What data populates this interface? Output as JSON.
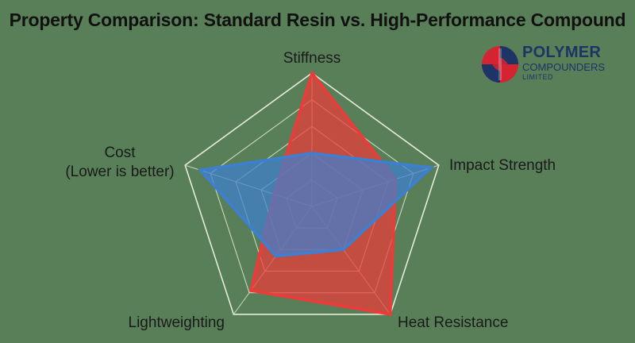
{
  "title": "Property Comparison: Standard Resin vs. High-Performance Compound",
  "logo": {
    "name": "POLYMER",
    "line2": "COMPOUNDERS",
    "line3": "LIMITED"
  },
  "chart_data": {
    "type": "radar",
    "axes": [
      {
        "label": "Stiffness",
        "lines": [
          "Stiffness"
        ]
      },
      {
        "label": "Impact Strength",
        "lines": [
          "Impact Strength"
        ]
      },
      {
        "label": "Heat Resistance",
        "lines": [
          "Heat Resistance"
        ]
      },
      {
        "label": "Lightweighting",
        "lines": [
          "Lightweighting"
        ]
      },
      {
        "label": "Cost (Lower is better)",
        "lines": [
          "Cost",
          "(Lower is better)"
        ]
      }
    ],
    "range": [
      0,
      5
    ],
    "grid_levels": 5,
    "grid": true,
    "legend": "none",
    "series": [
      {
        "values": [
          5.0,
          3.3,
          5.0,
          3.9,
          1.5
        ],
        "color": "#ef3a3a"
      },
      {
        "values": [
          2.0,
          4.7,
          2.0,
          2.3,
          4.4
        ],
        "color": "#3d7fd0"
      }
    ]
  }
}
